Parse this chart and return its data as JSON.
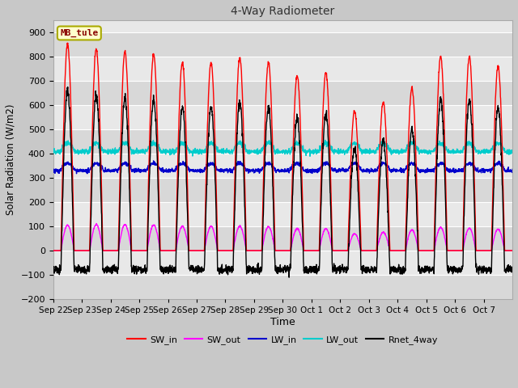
{
  "title": "4-Way Radiometer",
  "xlabel": "Time",
  "ylabel": "Solar Radiation (W/m2)",
  "ylim": [
    -200,
    950
  ],
  "yticks": [
    -200,
    -100,
    0,
    100,
    200,
    300,
    400,
    500,
    600,
    700,
    800,
    900
  ],
  "station_label": "MB_tule",
  "fig_bg_color": "#c8c8c8",
  "plot_bg_color": "#e8e8e8",
  "grid_color": "#ffffff",
  "colors": {
    "SW_in": "#ff0000",
    "SW_out": "#ff00ff",
    "LW_in": "#0000cc",
    "LW_out": "#00cccc",
    "Rnet_4way": "#000000"
  },
  "x_tick_labels": [
    "Sep 22",
    "Sep 23",
    "Sep 24",
    "Sep 25",
    "Sep 26",
    "Sep 27",
    "Sep 28",
    "Sep 29",
    "Sep 30",
    "Oct 1",
    "Oct 2",
    "Oct 3",
    "Oct 4",
    "Oct 5",
    "Oct 6",
    "Oct 7"
  ],
  "num_days": 16,
  "sw_in_peaks": [
    850,
    830,
    820,
    810,
    775,
    775,
    795,
    775,
    720,
    735,
    575,
    610,
    670,
    800,
    800,
    760
  ],
  "sw_out_peaks": [
    105,
    107,
    107,
    105,
    100,
    100,
    100,
    98,
    90,
    90,
    70,
    75,
    85,
    95,
    92,
    88
  ],
  "lw_in_base": 330,
  "lw_out_base": 408,
  "lw_in_bump": 30,
  "lw_out_bump": 35,
  "rnet_night": -90
}
